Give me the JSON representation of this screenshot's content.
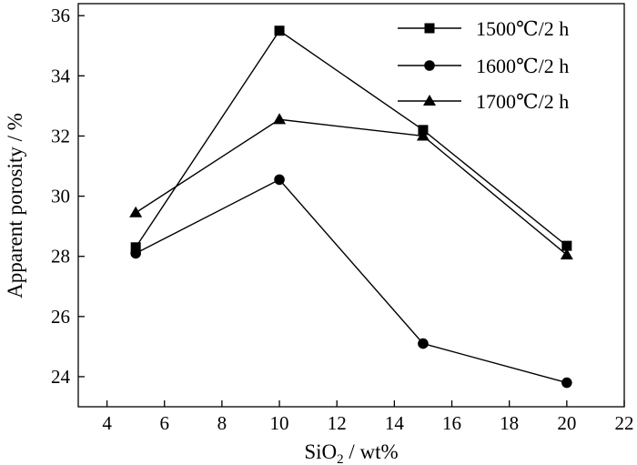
{
  "chart_data": {
    "type": "line",
    "title": "",
    "xlabel": "SiO",
    "xlabel_sub": "2",
    "xlabel_unit": " / wt%",
    "ylabel": "Apparent porosity / %",
    "xlim": [
      3,
      22
    ],
    "ylim": [
      23,
      36.4
    ],
    "x_ticks": [
      4,
      6,
      8,
      10,
      12,
      14,
      16,
      18,
      20,
      22
    ],
    "y_ticks": [
      24,
      26,
      28,
      30,
      32,
      34,
      36
    ],
    "legend_position": "top-right",
    "grid": false,
    "series": [
      {
        "name": "1500℃/2 h",
        "marker": "square",
        "x": [
          5,
          10,
          15,
          20
        ],
        "y": [
          28.3,
          35.5,
          32.2,
          28.35
        ]
      },
      {
        "name": "1600℃/2 h",
        "marker": "circle",
        "x": [
          5,
          10,
          15,
          20
        ],
        "y": [
          28.1,
          30.55,
          25.1,
          23.8
        ]
      },
      {
        "name": "1700℃/2 h",
        "marker": "triangle",
        "x": [
          5,
          10,
          15,
          20
        ],
        "y": [
          29.45,
          32.55,
          32.0,
          28.05
        ]
      }
    ]
  }
}
